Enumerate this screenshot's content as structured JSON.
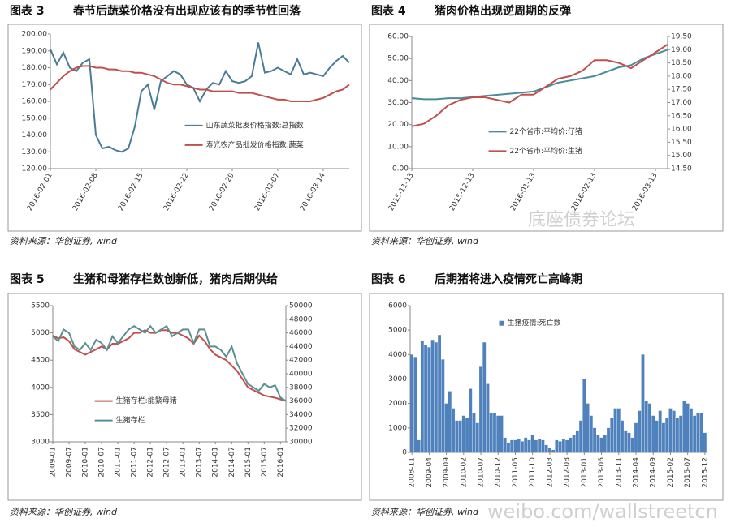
{
  "chart_data": [
    {
      "type": "line",
      "label": "图表 3",
      "title": "春节后蔬菜价格没有出现应该有的季节性回落",
      "source": "资料来源：华创证券, wind",
      "categories": [
        "2016-02-01",
        null,
        null,
        null,
        null,
        null,
        null,
        "2016-02-08",
        null,
        null,
        null,
        null,
        null,
        null,
        "2016-02-15",
        null,
        null,
        null,
        null,
        null,
        null,
        "2016-02-22",
        null,
        null,
        null,
        null,
        null,
        null,
        "2016-02-29",
        null,
        null,
        null,
        null,
        null,
        null,
        "2016-03-07",
        null,
        null,
        null,
        null,
        null,
        null,
        "2016-03-14",
        null,
        null,
        null,
        null
      ],
      "series": [
        {
          "name": "山东蔬菜批发价格指数:总指数",
          "color": "#4a7d95",
          "values": [
            191,
            182,
            189,
            180,
            178,
            183,
            185,
            140,
            132,
            133,
            131,
            130,
            132,
            145,
            166,
            170,
            155,
            172,
            175,
            178,
            176,
            170,
            168,
            160,
            167,
            171,
            170,
            178,
            172,
            171,
            172,
            175,
            195,
            177,
            178,
            180,
            178,
            176,
            185,
            176,
            177,
            176,
            175,
            180,
            184,
            187,
            183
          ]
        },
        {
          "name": "寿光农产品批发价格指数:蔬菜",
          "color": "#c0504d",
          "values": [
            167,
            171,
            175,
            178,
            180,
            181,
            181,
            180,
            180,
            179,
            179,
            178,
            178,
            177,
            177,
            176,
            175,
            173,
            171,
            170,
            170,
            169,
            168,
            167,
            167,
            166,
            166,
            166,
            166,
            165,
            165,
            165,
            164,
            163,
            162,
            161,
            161,
            160,
            160,
            160,
            160,
            161,
            162,
            164,
            166,
            167,
            170
          ]
        }
      ],
      "ylim": [
        120,
        200
      ],
      "yticks": [
        {
          "value": 120,
          "label": "120.00"
        },
        {
          "value": 130,
          "label": "130.00"
        },
        {
          "value": 140,
          "label": "140.00"
        },
        {
          "value": 150,
          "label": "150.00"
        },
        {
          "value": 160,
          "label": "160.00"
        },
        {
          "value": 170,
          "label": "170.00"
        },
        {
          "value": 180,
          "label": "180.00"
        },
        {
          "value": 190,
          "label": "190.00"
        },
        {
          "value": 200,
          "label": "200.00"
        }
      ],
      "grid": false,
      "legend": "lower-right"
    },
    {
      "type": "line",
      "label": "图表 4",
      "title": "猪肉价格出现逆周期的反弹",
      "source": "资料来源：华创证券, wind",
      "categories": [
        "2015-11-13",
        null,
        null,
        null,
        null,
        "2015-12-13",
        null,
        null,
        null,
        null,
        "2016-01-13",
        null,
        null,
        null,
        null,
        "2016-02-13",
        null,
        null,
        null,
        null,
        "2016-03-13",
        null
      ],
      "series": [
        {
          "name": "22个省市:平均价:仔猪",
          "color": "#4a8c9c",
          "values": [
            32,
            31.5,
            31.5,
            32,
            32,
            32.5,
            33,
            33.5,
            34,
            34.5,
            35,
            37,
            39,
            40,
            41,
            42,
            44,
            46,
            47,
            50,
            52,
            54
          ]
        },
        {
          "name": "22个省市:平均价:生猪",
          "color": "#c0504d",
          "axis": "y2",
          "values": [
            16.1,
            16.2,
            16.5,
            16.9,
            17.1,
            17.2,
            17.2,
            17.1,
            17.0,
            17.3,
            17.3,
            17.6,
            17.9,
            18.0,
            18.2,
            18.6,
            18.6,
            18.5,
            18.3,
            18.6,
            18.9,
            19.2
          ]
        }
      ],
      "ylim": [
        0,
        60
      ],
      "yticks": [
        {
          "value": 0,
          "label": "0.00"
        },
        {
          "value": 10,
          "label": "10.00"
        },
        {
          "value": 20,
          "label": "20.00"
        },
        {
          "value": 30,
          "label": "30.00"
        },
        {
          "value": 40,
          "label": "40.00"
        },
        {
          "value": 50,
          "label": "50.00"
        },
        {
          "value": 60,
          "label": "60.00"
        }
      ],
      "y2lim": [
        14.5,
        19.5
      ],
      "y2ticks": [
        {
          "value": 14.5,
          "label": "14.50"
        },
        {
          "value": 15,
          "label": "15.00"
        },
        {
          "value": 15.5,
          "label": "15.50"
        },
        {
          "value": 16,
          "label": "16.00"
        },
        {
          "value": 16.5,
          "label": "16.50"
        },
        {
          "value": 17,
          "label": "17.00"
        },
        {
          "value": 17.5,
          "label": "17.50"
        },
        {
          "value": 18,
          "label": "18.00"
        },
        {
          "value": 18.5,
          "label": "18.50"
        },
        {
          "value": 19,
          "label": "19.00"
        },
        {
          "value": 19.5,
          "label": "19.50"
        }
      ],
      "grid": false,
      "legend": "lower-center"
    },
    {
      "type": "line",
      "label": "图表 5",
      "title": "生猪和母猪存栏数创新低，猪肉后期供给",
      "source": "资料来源：华创证券, wind",
      "categories": [
        "2009-01",
        null,
        null,
        "2009-07",
        null,
        null,
        "2010-01",
        null,
        null,
        "2010-07",
        null,
        null,
        "2011-01",
        null,
        null,
        "2011-07",
        null,
        null,
        "2012-01",
        null,
        null,
        "2012-07",
        null,
        null,
        "2013-01",
        null,
        null,
        "2013-07",
        null,
        null,
        "2014-01",
        null,
        null,
        "2014-07",
        null,
        null,
        "2015-01",
        null,
        null,
        "2015-07",
        null,
        null,
        "2016-01",
        null
      ],
      "series": [
        {
          "name": "生猪存栏:能繁母猪",
          "color": "#c0504d",
          "values": [
            4950,
            4900,
            4920,
            4850,
            4700,
            4650,
            4600,
            4650,
            4700,
            4750,
            4700,
            4800,
            4800,
            4850,
            4900,
            5000,
            5000,
            5050,
            5000,
            5000,
            5050,
            5050,
            5000,
            5000,
            4950,
            4900,
            4800,
            4950,
            4850,
            4700,
            4600,
            4550,
            4500,
            4400,
            4300,
            4150,
            4000,
            3950,
            3900,
            3850,
            3830,
            3810,
            3780,
            3760
          ]
        },
        {
          "name": "生猪存栏",
          "color": "#5a8f8f",
          "axis": "y2",
          "values": [
            45500,
            44800,
            46500,
            46000,
            44000,
            43500,
            44500,
            43500,
            45000,
            44500,
            43500,
            45500,
            44500,
            45500,
            46500,
            47000,
            46500,
            46000,
            47000,
            46000,
            46500,
            47000,
            45500,
            46000,
            46500,
            46500,
            44500,
            46500,
            46500,
            44000,
            44000,
            43500,
            42500,
            44000,
            41500,
            40000,
            38500,
            38000,
            37500,
            38500,
            38000,
            38300,
            36500,
            36000
          ]
        }
      ],
      "ylim": [
        3000,
        5500
      ],
      "yticks": [
        3000,
        3500,
        4000,
        4500,
        5000,
        5500
      ],
      "y2lim": [
        30000,
        50000
      ],
      "y2ticks": [
        30000,
        32000,
        34000,
        36000,
        38000,
        40000,
        42000,
        44000,
        46000,
        48000,
        50000
      ],
      "grid": false,
      "legend": "lower-left"
    },
    {
      "type": "bar",
      "label": "图表 6",
      "title": "后期猪将进入疫情死亡高峰期",
      "source": "资料来源：华创证券, wind",
      "categories": [
        "2008-11",
        null,
        null,
        null,
        null,
        "2009-04",
        null,
        null,
        null,
        null,
        "2009-09",
        null,
        null,
        null,
        null,
        "2010-02",
        null,
        null,
        null,
        null,
        "2010-07",
        null,
        null,
        null,
        null,
        "2010-12",
        null,
        null,
        null,
        null,
        "2011-05",
        null,
        null,
        null,
        null,
        "2011-10",
        null,
        null,
        null,
        null,
        "2012-03",
        null,
        null,
        null,
        null,
        "2012-08",
        null,
        null,
        null,
        null,
        "2013-01",
        null,
        null,
        null,
        null,
        "2013-06",
        null,
        null,
        null,
        null,
        "2013-11",
        null,
        null,
        null,
        null,
        "2014-04",
        null,
        null,
        null,
        null,
        "2014-09",
        null,
        null,
        null,
        null,
        "2015-02",
        null,
        null,
        null,
        null,
        "2015-07",
        null,
        null,
        null,
        null,
        "2015-12"
      ],
      "series": [
        {
          "name": "生猪疫情:死亡数",
          "color": "#4f81bd",
          "values": [
            4000,
            3900,
            500,
            4550,
            4400,
            4300,
            4600,
            4500,
            4800,
            3800,
            2000,
            2500,
            1800,
            1300,
            1300,
            1500,
            1400,
            2600,
            1600,
            1200,
            3500,
            4500,
            2800,
            1600,
            1600,
            1500,
            1500,
            600,
            400,
            500,
            500,
            550,
            450,
            600,
            500,
            700,
            500,
            550,
            500,
            300,
            200,
            100,
            500,
            450,
            550,
            500,
            600,
            700,
            900,
            1300,
            3000,
            2000,
            1500,
            1000,
            700,
            600,
            700,
            1000,
            1400,
            1800,
            1800,
            1300,
            900,
            800,
            600,
            1200,
            1700,
            4000,
            2100,
            2000,
            1500,
            1300,
            1700,
            1200,
            1400,
            1800,
            1700,
            1400,
            1500,
            2100,
            2000,
            1800,
            1500,
            1600,
            1600,
            800
          ]
        }
      ],
      "ylim": [
        0,
        6000
      ],
      "yticks": [
        0,
        1000,
        2000,
        3000,
        4000,
        5000,
        6000
      ],
      "grid": false,
      "legend": "upper-center"
    }
  ],
  "watermarks": [
    "底座债券论坛",
    "weibo.com/wallstreetcn"
  ]
}
